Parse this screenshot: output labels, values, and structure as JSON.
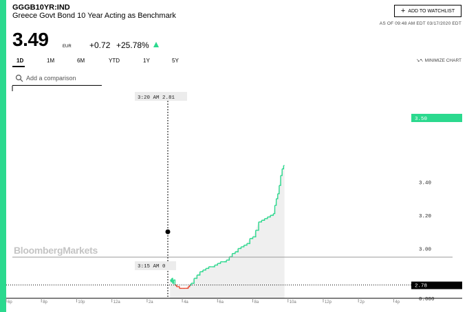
{
  "header": {
    "ticker": "GGGB10YR:IND",
    "name": "Greece Govt Bond 10 Year Acting as Benchmark",
    "watchlist_label": "ADD TO WATCHLIST",
    "as_of": "AS OF 09:48 AM EDT 03/17/2020 EDT"
  },
  "quote": {
    "price": "3.49",
    "currency": "EUR",
    "change": "+0.72",
    "change_pct": "+25.78%"
  },
  "tabs": [
    {
      "label": "1D",
      "active": true
    },
    {
      "label": "1M",
      "active": false
    },
    {
      "label": "6M",
      "active": false
    },
    {
      "label": "YTD",
      "active": false
    },
    {
      "label": "1Y",
      "active": false
    },
    {
      "label": "5Y",
      "active": false
    }
  ],
  "controls": {
    "minimize_label": "MINIMIZE CHART",
    "compare_placeholder": "Add a comparison"
  },
  "chart_data": {
    "type": "line",
    "watermark": "BloombergMarkets",
    "x_ticks": [
      "6p",
      "8p",
      "10p",
      "12a",
      "2a",
      "4a",
      "6a",
      "8a",
      "10a",
      "12p",
      "2p",
      "4p"
    ],
    "y_ticks": [
      "3.40",
      "3.20",
      "3.00",
      "0.000"
    ],
    "previous_close": 2.78,
    "previous_close_label": "2.78",
    "current_label": "3.50",
    "crosshair_top_label": "3:20 AM  2.81",
    "crosshair_bottom_label": "3:15 AM  0",
    "colors": {
      "up": "#2bd98e",
      "down": "#e8432a",
      "fill": "#efefef"
    },
    "series": [
      {
        "x": [
          "3:18",
          "3:21",
          "3:24",
          "3:27",
          "3:30",
          "3:35",
          "3:40",
          "3:50",
          "4:00",
          "4:10",
          "4:20",
          "4:25",
          "4:30",
          "4:40",
          "4:50",
          "5:00",
          "5:10",
          "5:20",
          "5:30",
          "5:40",
          "5:50",
          "6:00",
          "6:10",
          "6:20",
          "6:30",
          "6:40",
          "6:50",
          "7:00",
          "7:10",
          "7:20",
          "7:30",
          "7:40",
          "7:50",
          "8:00",
          "8:10",
          "8:20",
          "8:30",
          "8:40",
          "8:50",
          "9:00",
          "9:10",
          "9:15",
          "9:20",
          "9:25",
          "9:30",
          "9:35",
          "9:40",
          "9:45",
          "9:48"
        ],
        "values": [
          2.81,
          2.8,
          2.82,
          2.79,
          2.81,
          2.78,
          2.77,
          2.76,
          2.76,
          2.76,
          2.77,
          2.78,
          2.79,
          2.82,
          2.84,
          2.86,
          2.87,
          2.88,
          2.89,
          2.89,
          2.9,
          2.91,
          2.92,
          2.92,
          2.93,
          2.95,
          2.97,
          2.98,
          3.0,
          3.01,
          3.02,
          3.03,
          3.06,
          3.07,
          3.11,
          3.16,
          3.17,
          3.18,
          3.19,
          3.2,
          3.21,
          3.26,
          3.3,
          3.33,
          3.38,
          3.44,
          3.48,
          3.5,
          3.5
        ]
      }
    ]
  }
}
